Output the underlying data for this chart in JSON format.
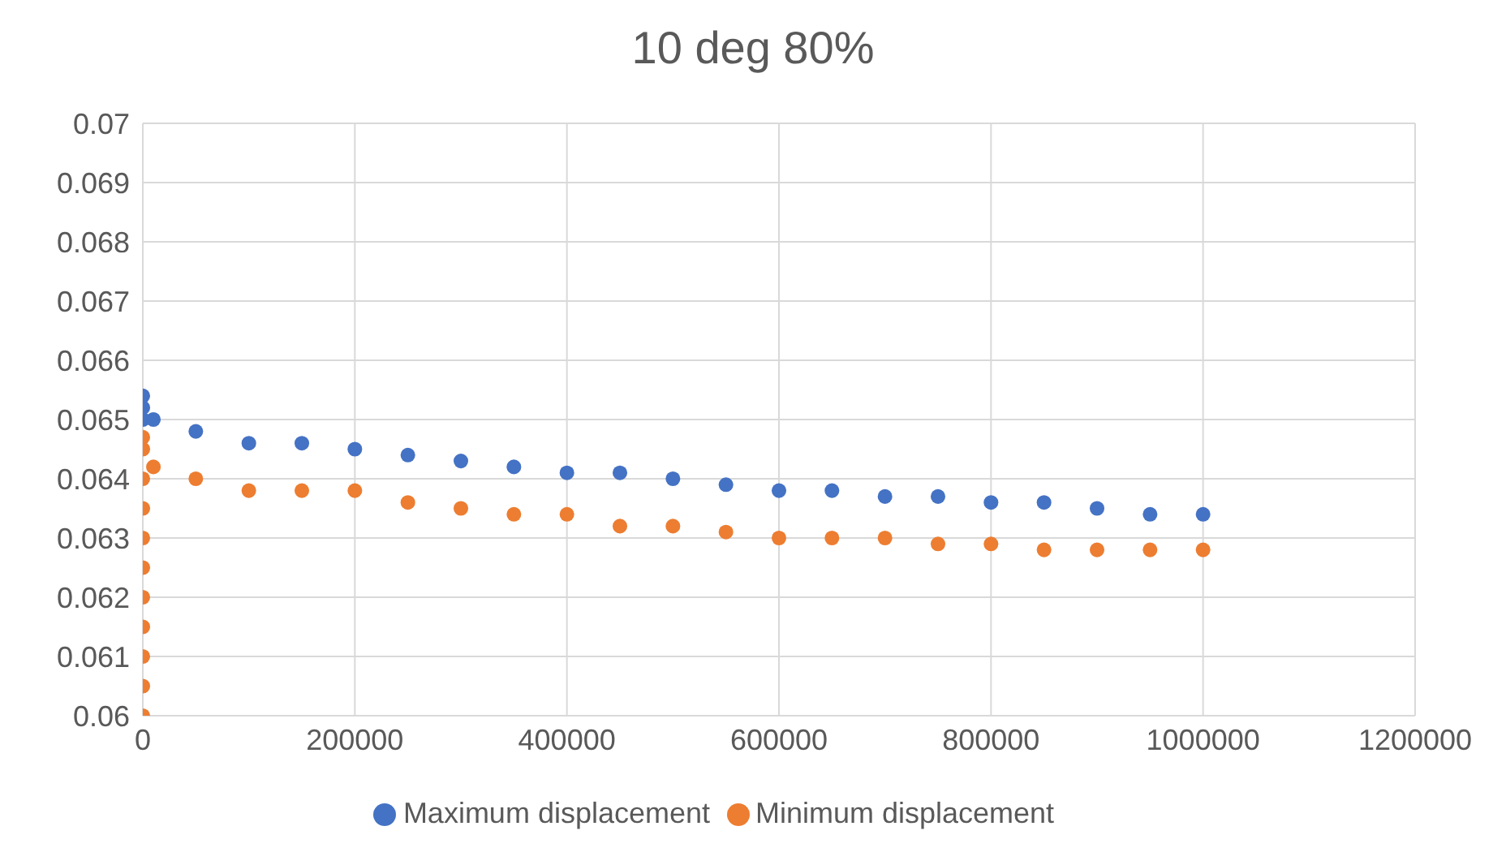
{
  "chart_data": {
    "type": "scatter",
    "title": "10 deg 80%",
    "xlim": [
      0,
      1200000
    ],
    "xticks": [
      0,
      200000,
      400000,
      600000,
      800000,
      1000000,
      1200000
    ],
    "ylim": [
      0.06,
      0.07
    ],
    "yticks": [
      0.06,
      0.061,
      0.062,
      0.063,
      0.064,
      0.065,
      0.066,
      0.067,
      0.068,
      0.069,
      0.07
    ],
    "grid": true,
    "legend": "bottom",
    "marker": "circle",
    "series": [
      {
        "name": "Maximum displacement",
        "color": "#4472c4",
        "x": [
          0,
          0,
          0,
          10000,
          50000,
          100000,
          150000,
          200000,
          250000,
          300000,
          350000,
          400000,
          450000,
          500000,
          550000,
          600000,
          650000,
          700000,
          750000,
          800000,
          850000,
          900000,
          950000,
          1000000
        ],
        "values": [
          0.065,
          0.0652,
          0.0654,
          0.065,
          0.0648,
          0.0646,
          0.0646,
          0.0645,
          0.0644,
          0.0643,
          0.0642,
          0.0641,
          0.0641,
          0.064,
          0.0639,
          0.0638,
          0.0638,
          0.0637,
          0.0637,
          0.0636,
          0.0636,
          0.0635,
          0.0634,
          0.0634
        ]
      },
      {
        "name": "Minimum displacement",
        "color": "#ed7d31",
        "x": [
          0,
          0,
          0,
          0,
          0,
          0,
          0,
          0,
          0,
          0,
          0,
          10000,
          50000,
          100000,
          150000,
          200000,
          250000,
          300000,
          350000,
          400000,
          450000,
          500000,
          550000,
          600000,
          650000,
          700000,
          750000,
          800000,
          850000,
          900000,
          950000,
          1000000
        ],
        "values": [
          0.06,
          0.0605,
          0.061,
          0.0615,
          0.062,
          0.0625,
          0.063,
          0.0635,
          0.064,
          0.0645,
          0.0647,
          0.0642,
          0.064,
          0.0638,
          0.0638,
          0.0638,
          0.0636,
          0.0635,
          0.0634,
          0.0634,
          0.0632,
          0.0632,
          0.0631,
          0.063,
          0.063,
          0.063,
          0.0629,
          0.0629,
          0.0628,
          0.0628,
          0.0628,
          0.0628
        ]
      }
    ]
  }
}
